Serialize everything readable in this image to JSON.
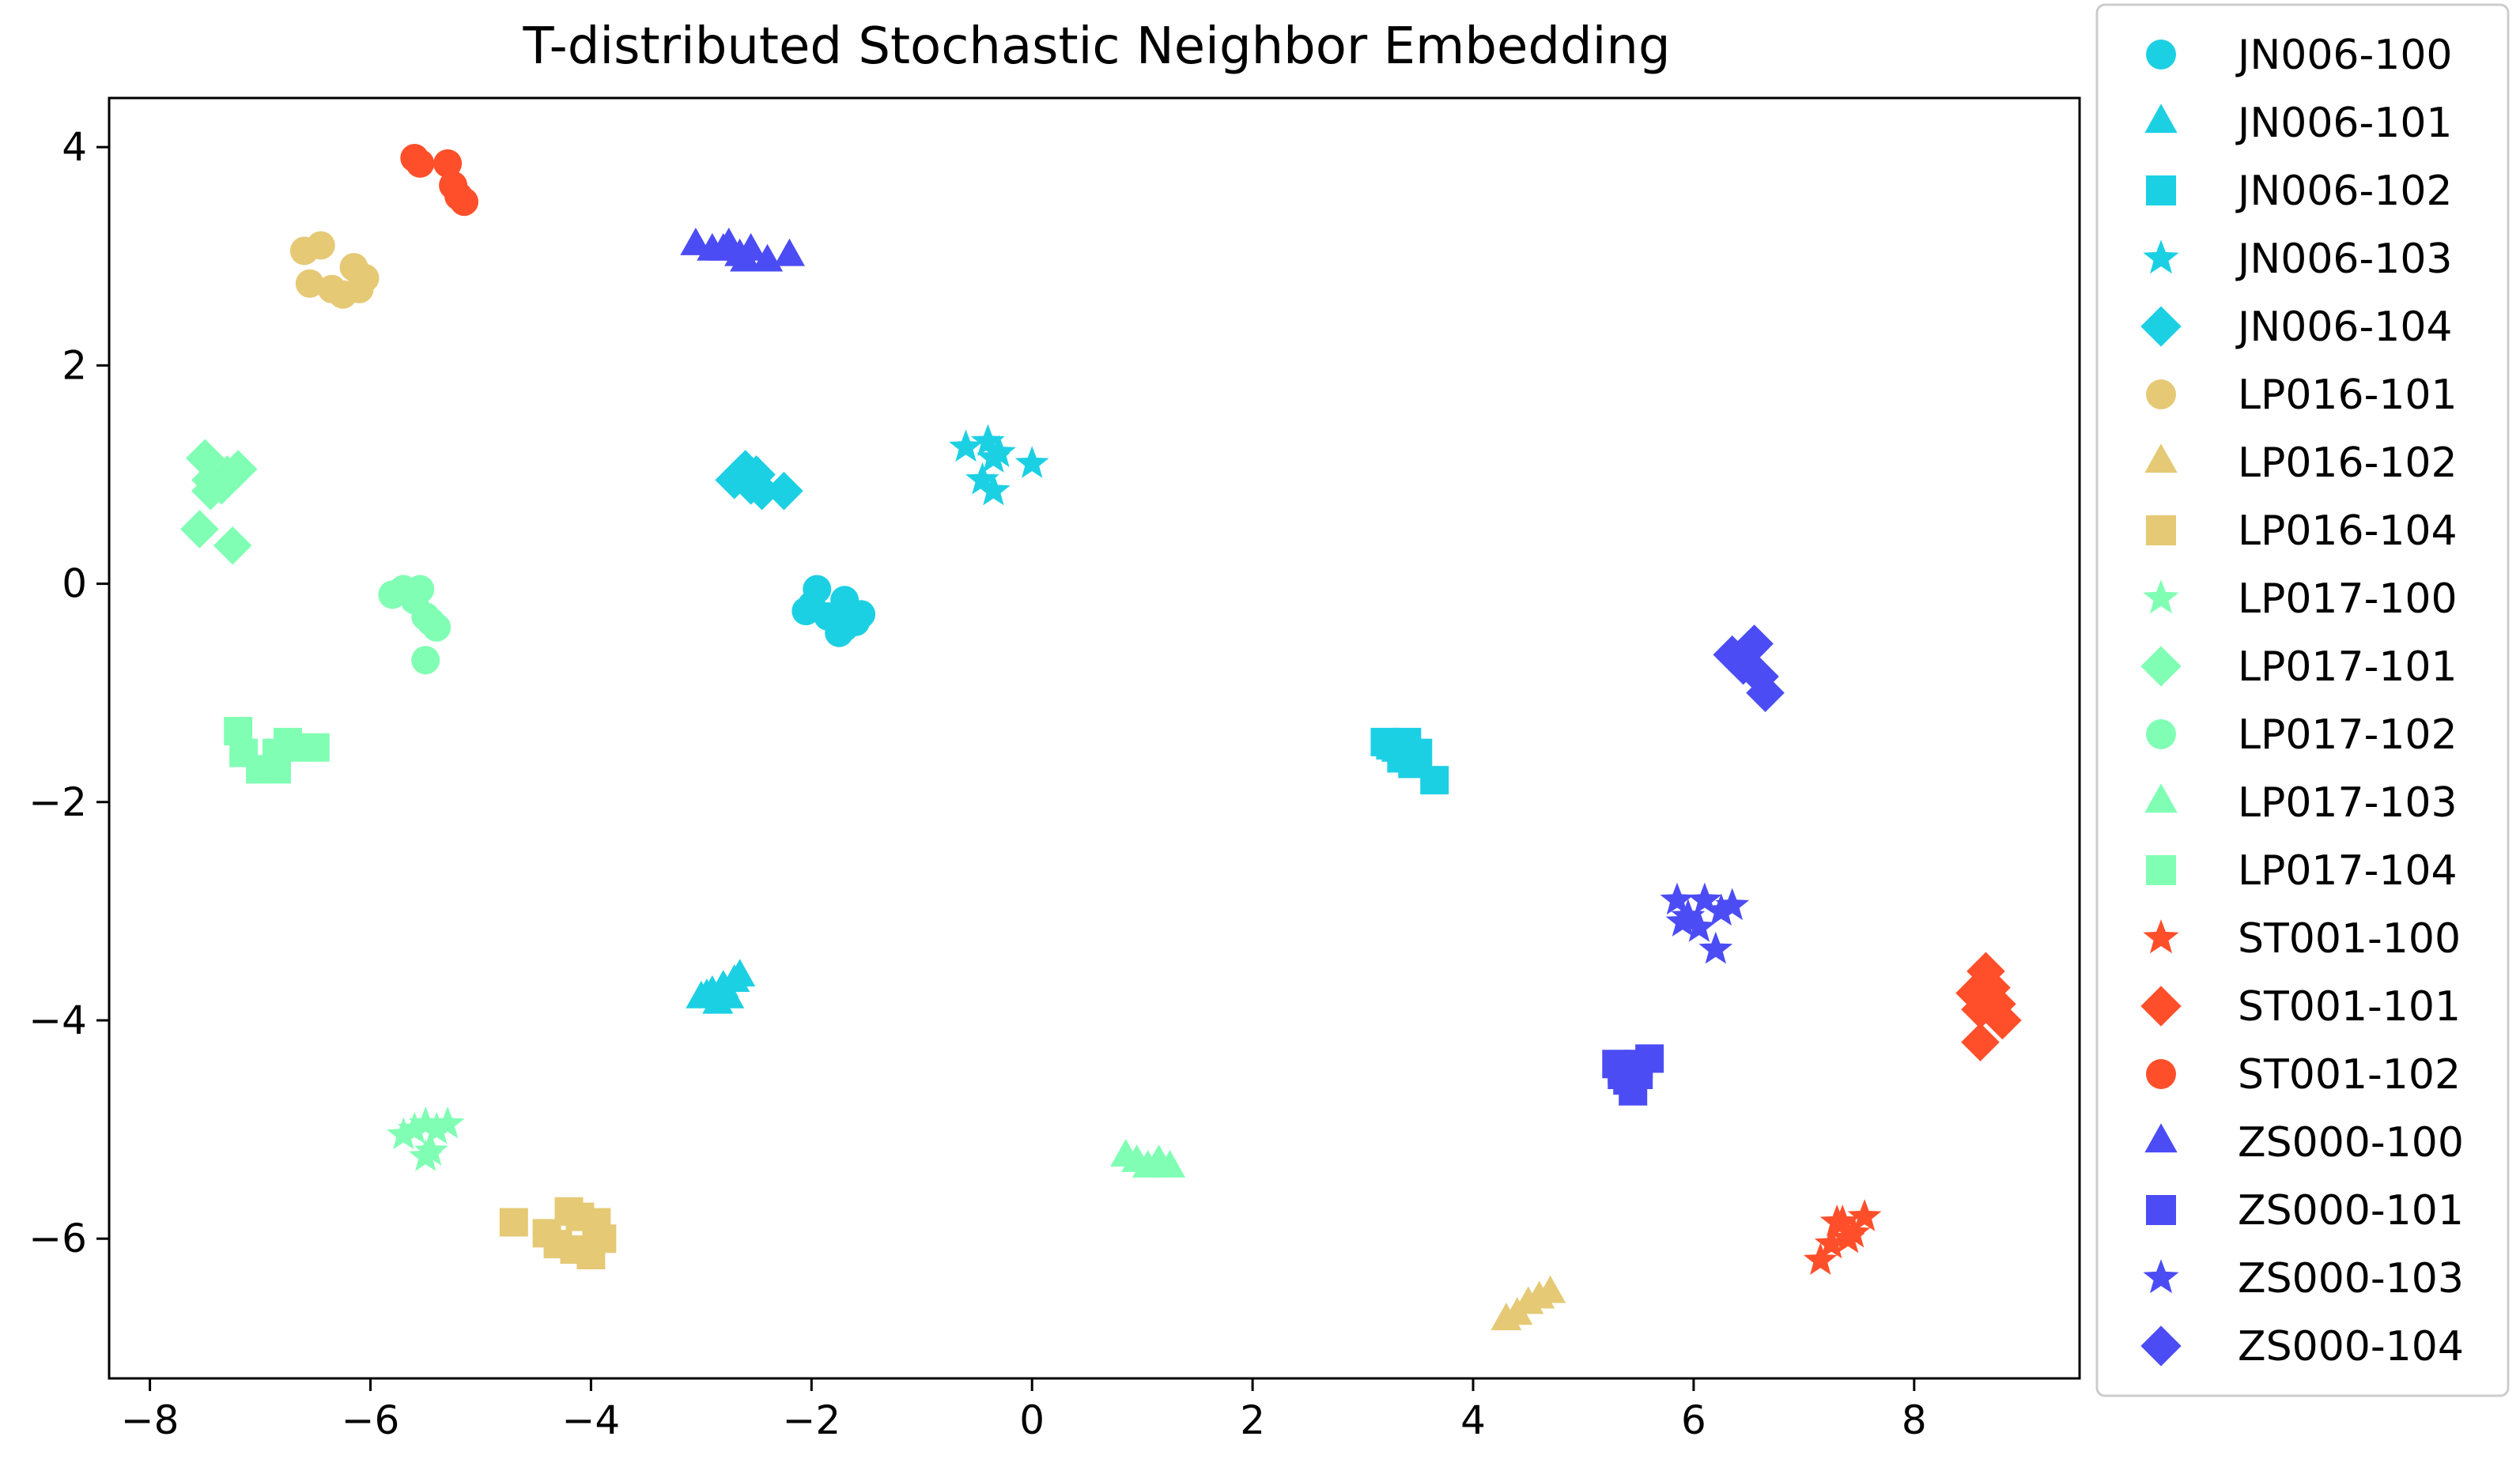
{
  "chart_data": {
    "type": "scatter",
    "title": "T-distributed Stochastic Neighbor Embedding",
    "xlabel": "",
    "ylabel": "",
    "xlim": [
      -8.37,
      9.5
    ],
    "ylim": [
      -7.28,
      4.45
    ],
    "xticks": [
      -8,
      -6,
      -4,
      -2,
      0,
      2,
      4,
      6,
      8
    ],
    "yticks": [
      -6,
      -4,
      -2,
      0,
      2,
      4
    ],
    "grid": false,
    "legend_position": "outside-right",
    "series": [
      {
        "name": "JN006-100",
        "marker": "circle",
        "color": "#1cd0e4",
        "x": [
          -1.95,
          -2.0,
          -1.8,
          -1.7,
          -1.6,
          -1.75,
          -1.85,
          -2.05,
          -1.7,
          -1.55
        ],
        "y": [
          -0.05,
          -0.2,
          -0.3,
          -0.15,
          -0.35,
          -0.45,
          -0.3,
          -0.25,
          -0.4,
          -0.28
        ]
      },
      {
        "name": "JN006-101",
        "marker": "triangle",
        "color": "#1cd0e4",
        "x": [
          -3.0,
          -2.9,
          -2.8,
          -2.7,
          -2.65,
          -2.85,
          -2.75,
          -2.95
        ],
        "y": [
          -3.8,
          -3.75,
          -3.7,
          -3.65,
          -3.6,
          -3.85,
          -3.8,
          -3.78
        ]
      },
      {
        "name": "JN006-102",
        "marker": "square",
        "color": "#1cd0e4",
        "x": [
          3.2,
          3.3,
          3.4,
          3.5,
          3.45,
          3.65,
          3.35,
          3.25
        ],
        "y": [
          -1.45,
          -1.5,
          -1.45,
          -1.55,
          -1.65,
          -1.8,
          -1.6,
          -1.48
        ]
      },
      {
        "name": "JN006-103",
        "marker": "star",
        "color": "#1cd0e4",
        "x": [
          -0.6,
          -0.4,
          -0.35,
          -0.45,
          -0.35,
          0.0,
          -0.3
        ],
        "y": [
          1.25,
          1.3,
          1.15,
          0.95,
          0.85,
          1.1,
          1.2
        ]
      },
      {
        "name": "JN006-104",
        "marker": "diamond",
        "color": "#1cd0e4",
        "x": [
          -2.7,
          -2.6,
          -2.5,
          -2.45,
          -2.55,
          -2.25,
          -2.65
        ],
        "y": [
          0.95,
          1.05,
          1.0,
          0.85,
          0.9,
          0.85,
          1.0
        ]
      },
      {
        "name": "LP016-101",
        "marker": "circle",
        "color": "#e5c975",
        "x": [
          -6.6,
          -6.45,
          -6.55,
          -6.35,
          -6.25,
          -6.15,
          -6.05,
          -6.1
        ],
        "y": [
          3.05,
          3.1,
          2.75,
          2.7,
          2.65,
          2.9,
          2.8,
          2.7
        ]
      },
      {
        "name": "LP016-102",
        "marker": "triangle",
        "color": "#e5c975",
        "x": [
          4.3,
          4.4,
          4.5,
          4.6,
          4.7
        ],
        "y": [
          -6.75,
          -6.7,
          -6.6,
          -6.55,
          -6.5
        ]
      },
      {
        "name": "LP016-104",
        "marker": "square",
        "color": "#e5c975",
        "x": [
          -4.7,
          -4.4,
          -4.3,
          -4.2,
          -4.1,
          -4.0,
          -3.95,
          -3.9,
          -4.15
        ],
        "y": [
          -5.85,
          -5.95,
          -6.05,
          -5.75,
          -5.8,
          -6.15,
          -5.85,
          -6.0,
          -6.1
        ]
      },
      {
        "name": "LP017-100",
        "marker": "star",
        "color": "#80ffb4",
        "x": [
          -5.7,
          -5.6,
          -5.5,
          -5.4,
          -5.3,
          -5.5,
          -5.45
        ],
        "y": [
          -5.05,
          -5.0,
          -4.95,
          -5.0,
          -4.95,
          -5.25,
          -5.2
        ]
      },
      {
        "name": "LP017-101",
        "marker": "diamond",
        "color": "#80ffb4",
        "x": [
          -7.5,
          -7.45,
          -7.35,
          -7.3,
          -7.25,
          -7.2,
          -7.55,
          -7.45
        ],
        "y": [
          1.15,
          0.95,
          0.9,
          1.0,
          0.35,
          1.05,
          0.5,
          0.85
        ]
      },
      {
        "name": "LP017-102",
        "marker": "circle",
        "color": "#80ffb4",
        "x": [
          -5.8,
          -5.7,
          -5.55,
          -5.5,
          -5.45,
          -5.4,
          -5.5,
          -5.6
        ],
        "y": [
          -0.1,
          -0.05,
          -0.05,
          -0.3,
          -0.35,
          -0.4,
          -0.7,
          -0.15
        ]
      },
      {
        "name": "LP017-103",
        "marker": "triangle",
        "color": "#80ffb4",
        "x": [
          0.85,
          0.95,
          1.05,
          1.15,
          1.25
        ],
        "y": [
          -5.25,
          -5.3,
          -5.35,
          -5.3,
          -5.35
        ]
      },
      {
        "name": "LP017-104",
        "marker": "square",
        "color": "#80ffb4",
        "x": [
          -7.2,
          -7.15,
          -7.0,
          -6.85,
          -6.75,
          -6.7,
          -6.5,
          -6.85
        ],
        "y": [
          -1.35,
          -1.55,
          -1.7,
          -1.7,
          -1.45,
          -1.5,
          -1.5,
          -1.55
        ]
      },
      {
        "name": "ST001-100",
        "marker": "star",
        "color": "#ff4f2a",
        "x": [
          7.15,
          7.25,
          7.35,
          7.45,
          7.55,
          7.3,
          7.4
        ],
        "y": [
          -6.2,
          -6.05,
          -5.85,
          -5.95,
          -5.8,
          -5.85,
          -6.0
        ]
      },
      {
        "name": "ST001-101",
        "marker": "diamond",
        "color": "#ff4f2a",
        "x": [
          8.55,
          8.6,
          8.65,
          8.7,
          8.75,
          8.8,
          8.6
        ],
        "y": [
          -3.75,
          -4.2,
          -3.55,
          -3.7,
          -3.85,
          -4.0,
          -3.9
        ]
      },
      {
        "name": "ST001-102",
        "marker": "circle",
        "color": "#ff4f2a",
        "x": [
          -5.6,
          -5.55,
          -5.3,
          -5.25,
          -5.2,
          -5.15
        ],
        "y": [
          3.9,
          3.85,
          3.85,
          3.65,
          3.55,
          3.5
        ]
      },
      {
        "name": "ZS000-100",
        "marker": "triangle",
        "color": "#4c4cf5",
        "x": [
          -3.05,
          -2.9,
          -2.75,
          -2.65,
          -2.55,
          -2.4,
          -2.2,
          -2.6,
          -2.8
        ],
        "y": [
          3.1,
          3.05,
          3.1,
          3.0,
          3.05,
          2.95,
          3.0,
          2.95,
          3.05
        ]
      },
      {
        "name": "ZS000-101",
        "marker": "square",
        "color": "#4c4cf5",
        "x": [
          5.3,
          5.35,
          5.4,
          5.45,
          5.5,
          5.6,
          5.35,
          5.5
        ],
        "y": [
          -4.4,
          -4.5,
          -4.55,
          -4.65,
          -4.4,
          -4.35,
          -4.45,
          -4.5
        ]
      },
      {
        "name": "ZS000-103",
        "marker": "star",
        "color": "#4c4cf5",
        "x": [
          5.85,
          5.95,
          6.05,
          6.1,
          6.25,
          6.35,
          6.2,
          5.9
        ],
        "y": [
          -2.9,
          -3.05,
          -3.15,
          -2.9,
          -3.0,
          -2.95,
          -3.35,
          -3.1
        ]
      },
      {
        "name": "ZS000-104",
        "marker": "diamond",
        "color": "#4c4cf5",
        "x": [
          6.35,
          6.45,
          6.5,
          6.55,
          6.6,
          6.65
        ],
        "y": [
          -0.65,
          -0.75,
          -0.6,
          -0.55,
          -0.85,
          -1.0
        ]
      }
    ]
  }
}
